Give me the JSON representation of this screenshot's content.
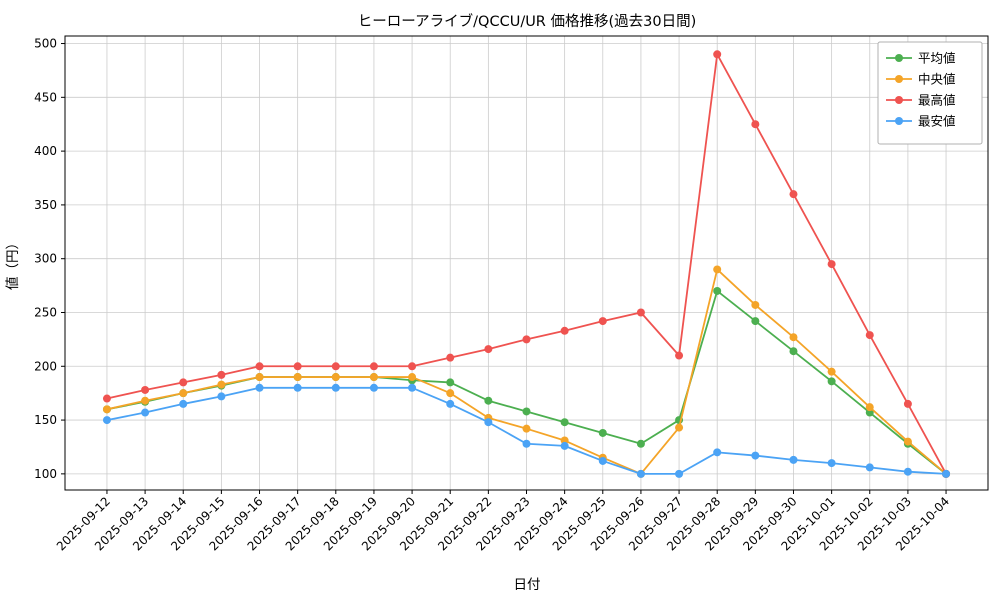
{
  "chart_data": {
    "type": "line",
    "title": "ヒーローアライブ/QCCU/UR 価格推移(過去30日間)",
    "xlabel": "日付",
    "ylabel": "値（円）",
    "ylim": [
      85,
      507
    ],
    "yticks": [
      100,
      150,
      200,
      250,
      300,
      350,
      400,
      450,
      500
    ],
    "grid": true,
    "legend_position": "upper right",
    "categories": [
      "2025-09-12",
      "2025-09-13",
      "2025-09-14",
      "2025-09-15",
      "2025-09-16",
      "2025-09-17",
      "2025-09-18",
      "2025-09-19",
      "2025-09-20",
      "2025-09-21",
      "2025-09-22",
      "2025-09-23",
      "2025-09-24",
      "2025-09-25",
      "2025-09-26",
      "2025-09-27",
      "2025-09-28",
      "2025-09-29",
      "2025-09-30",
      "2025-10-01",
      "2025-10-02",
      "2025-10-03",
      "2025-10-04"
    ],
    "series": [
      {
        "key": "average",
        "name": "平均値",
        "color": "#4caf50",
        "values": [
          160,
          167,
          175,
          182,
          190,
          190,
          190,
          190,
          187,
          185,
          168,
          158,
          148,
          138,
          128,
          150,
          270,
          242,
          214,
          186,
          157,
          128,
          100
        ]
      },
      {
        "key": "median",
        "name": "中央値",
        "color": "#f4a428",
        "values": [
          160,
          168,
          175,
          183,
          190,
          190,
          190,
          190,
          190,
          175,
          152,
          142,
          131,
          115,
          100,
          143,
          290,
          257,
          227,
          195,
          162,
          130,
          100
        ]
      },
      {
        "key": "max",
        "name": "最高値",
        "color": "#ef5350",
        "values": [
          170,
          178,
          185,
          192,
          200,
          200,
          200,
          200,
          200,
          208,
          216,
          225,
          233,
          242,
          250,
          210,
          490,
          425,
          360,
          295,
          229,
          165,
          100
        ]
      },
      {
        "key": "min",
        "name": "最安値",
        "color": "#4ba3f5",
        "values": [
          150,
          157,
          165,
          172,
          180,
          180,
          180,
          180,
          180,
          165,
          148,
          128,
          126,
          112,
          100,
          100,
          120,
          117,
          113,
          110,
          106,
          102,
          100
        ]
      }
    ],
    "style": {
      "grid_color": "#cccccc",
      "spine_color": "#000000",
      "legend_border_color": "#b0b0b0",
      "background": "#ffffff"
    }
  }
}
